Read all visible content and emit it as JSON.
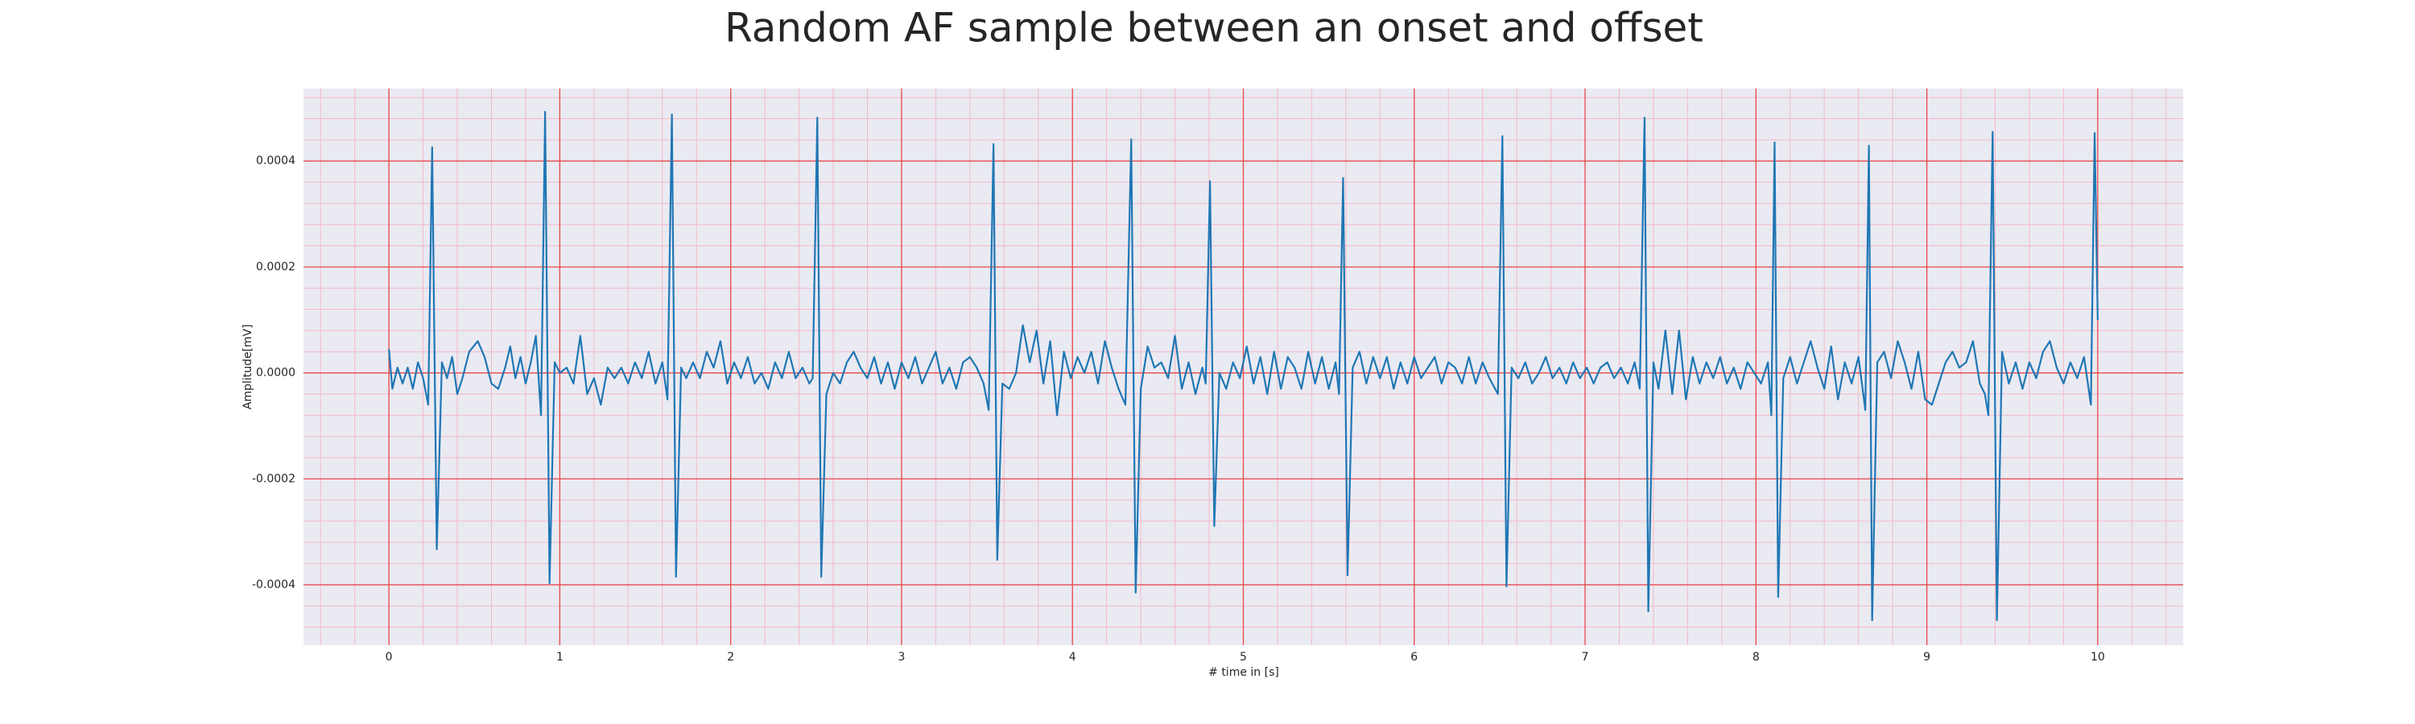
{
  "chart_data": {
    "type": "line",
    "title": "Random AF sample between an onset and offset",
    "xlabel": "# time in [s]",
    "ylabel": "Amplitude[mV]",
    "xlim": [
      -0.5,
      10.5
    ],
    "ylim": [
      -0.000514,
      0.000537
    ],
    "xticks": [
      0,
      1,
      2,
      3,
      4,
      5,
      6,
      7,
      8,
      9,
      10
    ],
    "yticks": [
      -0.0004,
      -0.0002,
      {
        "value": 0,
        "label": "0.0000"
      },
      0.0002,
      0.0004
    ],
    "grid": true,
    "minor_grid": true,
    "background": "#eaeaf2",
    "grid_color": "#e8484a",
    "minor_grid_color": "#f5b8c4",
    "series": [
      {
        "color": "#1f77b4",
        "x": [
          0,
          0.02,
          0.05,
          0.08,
          0.11,
          0.14,
          0.17,
          0.2,
          0.23,
          0.253,
          0.28,
          0.31,
          0.34,
          0.37,
          0.4,
          0.43,
          0.47,
          0.52,
          0.56,
          0.6,
          0.64,
          0.68,
          0.71,
          0.74,
          0.77,
          0.8,
          0.83,
          0.86,
          0.89,
          0.914,
          0.94,
          0.97,
          1.0,
          1.04,
          1.08,
          1.12,
          1.16,
          1.2,
          1.24,
          1.28,
          1.32,
          1.36,
          1.4,
          1.44,
          1.48,
          1.52,
          1.56,
          1.6,
          1.63,
          1.656,
          1.68,
          1.71,
          1.74,
          1.78,
          1.82,
          1.86,
          1.9,
          1.94,
          1.98,
          2.02,
          2.06,
          2.1,
          2.14,
          2.18,
          2.22,
          2.26,
          2.3,
          2.34,
          2.38,
          2.42,
          2.46,
          2.48,
          2.507,
          2.53,
          2.56,
          2.6,
          2.64,
          2.68,
          2.72,
          2.76,
          2.8,
          2.84,
          2.88,
          2.92,
          2.96,
          3.0,
          3.04,
          3.08,
          3.12,
          3.16,
          3.2,
          3.24,
          3.28,
          3.32,
          3.36,
          3.4,
          3.44,
          3.48,
          3.51,
          3.538,
          3.56,
          3.59,
          3.63,
          3.67,
          3.71,
          3.75,
          3.79,
          3.83,
          3.87,
          3.91,
          3.95,
          3.99,
          4.03,
          4.07,
          4.11,
          4.15,
          4.19,
          4.23,
          4.27,
          4.31,
          4.344,
          4.37,
          4.4,
          4.44,
          4.48,
          4.52,
          4.56,
          4.6,
          4.64,
          4.68,
          4.72,
          4.76,
          4.78,
          4.805,
          4.83,
          4.86,
          4.9,
          4.94,
          4.98,
          5.02,
          5.06,
          5.1,
          5.14,
          5.18,
          5.22,
          5.26,
          5.3,
          5.34,
          5.38,
          5.42,
          5.46,
          5.5,
          5.54,
          5.56,
          5.584,
          5.61,
          5.64,
          5.68,
          5.72,
          5.76,
          5.8,
          5.84,
          5.88,
          5.92,
          5.96,
          6.0,
          6.04,
          6.08,
          6.12,
          6.16,
          6.2,
          6.24,
          6.28,
          6.32,
          6.36,
          6.4,
          6.44,
          6.49,
          6.516,
          6.54,
          6.57,
          6.61,
          6.65,
          6.69,
          6.73,
          6.77,
          6.81,
          6.85,
          6.89,
          6.93,
          6.97,
          7.01,
          7.05,
          7.09,
          7.13,
          7.17,
          7.21,
          7.25,
          7.29,
          7.32,
          7.348,
          7.37,
          7.4,
          7.43,
          7.47,
          7.51,
          7.55,
          7.59,
          7.63,
          7.67,
          7.71,
          7.75,
          7.79,
          7.83,
          7.87,
          7.91,
          7.95,
          7.99,
          8.03,
          8.07,
          8.09,
          8.109,
          8.13,
          8.16,
          8.2,
          8.24,
          8.28,
          8.32,
          8.36,
          8.4,
          8.44,
          8.48,
          8.52,
          8.56,
          8.6,
          8.64,
          8.661,
          8.68,
          8.71,
          8.75,
          8.79,
          8.83,
          8.87,
          8.91,
          8.95,
          8.99,
          9.03,
          9.07,
          9.11,
          9.15,
          9.19,
          9.23,
          9.27,
          9.31,
          9.34,
          9.36,
          9.385,
          9.41,
          9.44,
          9.48,
          9.52,
          9.56,
          9.6,
          9.64,
          9.68,
          9.72,
          9.76,
          9.8,
          9.84,
          9.88,
          9.92,
          9.96,
          9.982,
          10.0
        ],
        "values": [
          4.5e-05,
          -3e-05,
          1e-05,
          -2e-05,
          1e-05,
          -3e-05,
          2e-05,
          -1e-05,
          -6e-05,
          0.000426,
          -0.000333,
          2e-05,
          -1e-05,
          3e-05,
          -4e-05,
          -1e-05,
          4e-05,
          6e-05,
          3e-05,
          -2e-05,
          -3e-05,
          1e-05,
          5e-05,
          -1e-05,
          3e-05,
          -2e-05,
          2e-05,
          7e-05,
          -8e-05,
          0.000493,
          -0.000397,
          2e-05,
          0.0,
          1e-05,
          -2e-05,
          7e-05,
          -4e-05,
          -1e-05,
          -6e-05,
          1e-05,
          -1e-05,
          1e-05,
          -2e-05,
          2e-05,
          -1e-05,
          4e-05,
          -2e-05,
          2e-05,
          -5e-05,
          0.000488,
          -0.000385,
          1e-05,
          -1e-05,
          2e-05,
          -1e-05,
          4e-05,
          1e-05,
          6e-05,
          -2e-05,
          2e-05,
          -1e-05,
          3e-05,
          -2e-05,
          0.0,
          -3e-05,
          2e-05,
          -1e-05,
          4e-05,
          -1e-05,
          1e-05,
          -2e-05,
          -1e-05,
          0.000482,
          -0.000385,
          -4e-05,
          0.0,
          -2e-05,
          2e-05,
          4e-05,
          1e-05,
          -1e-05,
          3e-05,
          -2e-05,
          2e-05,
          -3e-05,
          2e-05,
          -1e-05,
          3e-05,
          -2e-05,
          1e-05,
          4e-05,
          -2e-05,
          1e-05,
          -3e-05,
          2e-05,
          3e-05,
          1e-05,
          -2e-05,
          -7e-05,
          0.000432,
          -0.000353,
          -2e-05,
          -3e-05,
          0.0,
          9e-05,
          2e-05,
          8e-05,
          -2e-05,
          6e-05,
          -8e-05,
          4e-05,
          -1e-05,
          3e-05,
          0.0,
          4e-05,
          -2e-05,
          6e-05,
          1e-05,
          -3e-05,
          -6e-05,
          0.000441,
          -0.000415,
          -3e-05,
          5e-05,
          1e-05,
          2e-05,
          -1e-05,
          7e-05,
          -3e-05,
          2e-05,
          -4e-05,
          1e-05,
          -2e-05,
          0.000362,
          -0.000289,
          0.0,
          -3e-05,
          2e-05,
          -1e-05,
          5e-05,
          -2e-05,
          3e-05,
          -4e-05,
          4e-05,
          -3e-05,
          3e-05,
          1e-05,
          -3e-05,
          4e-05,
          -2e-05,
          3e-05,
          -3e-05,
          2e-05,
          -4e-05,
          0.000368,
          -0.000382,
          1e-05,
          4e-05,
          -2e-05,
          3e-05,
          -1e-05,
          3e-05,
          -3e-05,
          2e-05,
          -2e-05,
          3e-05,
          -1e-05,
          1e-05,
          3e-05,
          -2e-05,
          2e-05,
          1e-05,
          -2e-05,
          3e-05,
          -2e-05,
          2e-05,
          -1e-05,
          -4e-05,
          0.000447,
          -0.000403,
          1e-05,
          -1e-05,
          2e-05,
          -2e-05,
          0.0,
          3e-05,
          -1e-05,
          1e-05,
          -2e-05,
          2e-05,
          -1e-05,
          1e-05,
          -2e-05,
          1e-05,
          2e-05,
          -1e-05,
          1e-05,
          -2e-05,
          2e-05,
          -3e-05,
          0.000482,
          -0.00045,
          2e-05,
          -3e-05,
          8e-05,
          -4e-05,
          8e-05,
          -5e-05,
          3e-05,
          -2e-05,
          2e-05,
          -1e-05,
          3e-05,
          -2e-05,
          1e-05,
          -3e-05,
          2e-05,
          0.0,
          -2e-05,
          2e-05,
          -8e-05,
          0.000435,
          -0.000423,
          -1e-05,
          3e-05,
          -2e-05,
          2e-05,
          6e-05,
          1e-05,
          -3e-05,
          5e-05,
          -5e-05,
          2e-05,
          -2e-05,
          3e-05,
          -7e-05,
          0.000429,
          -0.000467,
          2e-05,
          4e-05,
          -1e-05,
          6e-05,
          2e-05,
          -3e-05,
          4e-05,
          -5e-05,
          -6e-05,
          -2e-05,
          2e-05,
          4e-05,
          1e-05,
          2e-05,
          6e-05,
          -2e-05,
          -4e-05,
          -8e-05,
          0.000455,
          -0.000467,
          4e-05,
          -2e-05,
          2e-05,
          -3e-05,
          2e-05,
          -1e-05,
          4e-05,
          6e-05,
          1e-05,
          -2e-05,
          2e-05,
          -1e-05,
          3e-05,
          -6e-05,
          0.000453,
          0.0001
        ]
      }
    ]
  }
}
